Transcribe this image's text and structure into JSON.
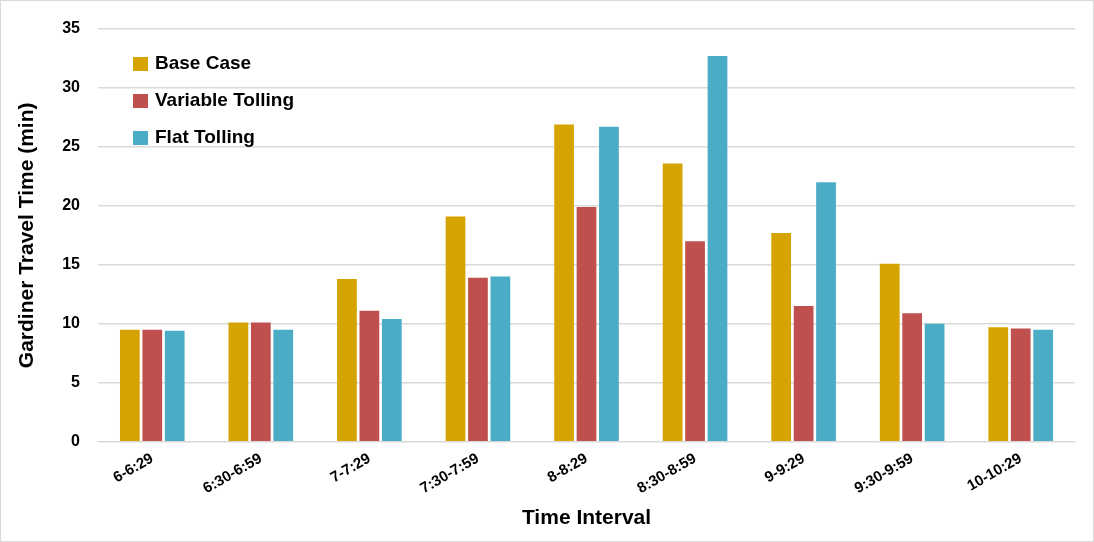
{
  "chart_data": {
    "type": "bar",
    "xlabel": "Time Interval",
    "ylabel": "Gardiner Travel Time (min)",
    "categories": [
      "6-6:29",
      "6:30-6:59",
      "7-7:29",
      "7:30-7:59",
      "8-8:29",
      "8:30-8:59",
      "9-9:29",
      "9:30-9:59",
      "10-10:29"
    ],
    "series": [
      {
        "name": "Base Case",
        "color": "#d6a400",
        "values": [
          9.5,
          10.1,
          13.8,
          19.1,
          26.9,
          23.6,
          17.7,
          15.1,
          9.7
        ]
      },
      {
        "name": "Variable Tolling",
        "color": "#c0504d",
        "values": [
          9.5,
          10.1,
          11.1,
          13.9,
          19.9,
          17.0,
          11.5,
          10.9,
          9.6
        ]
      },
      {
        "name": "Flat Tolling",
        "color": "#4bacc6",
        "values": [
          9.4,
          9.5,
          10.4,
          14.0,
          26.7,
          32.7,
          22.0,
          10.0,
          9.5
        ]
      }
    ],
    "ylim": [
      0,
      35
    ],
    "yticks": [
      0,
      5,
      10,
      15,
      20,
      25,
      30,
      35
    ],
    "grid": "y",
    "legend": "top left"
  }
}
